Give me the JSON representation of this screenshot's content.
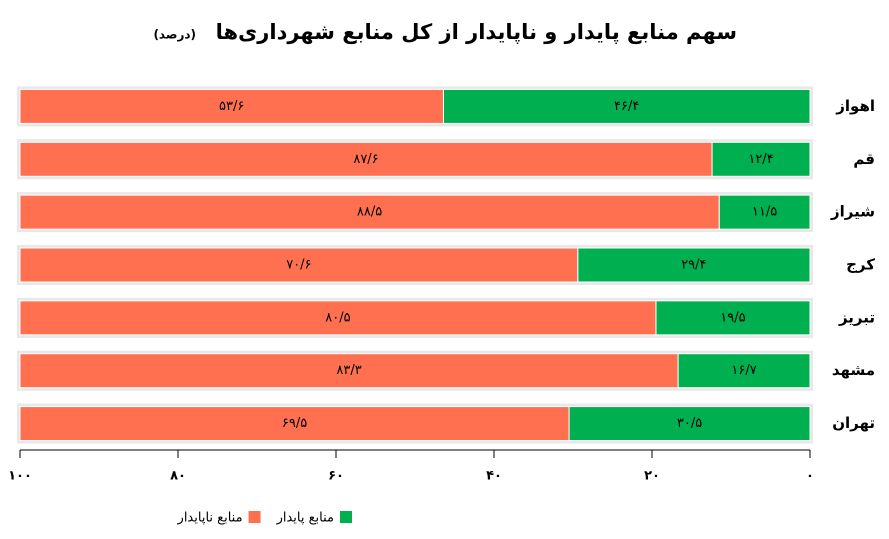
{
  "chart_data": {
    "type": "stacked_barh",
    "title": "سهم منابع پایدار و ناپایدار از کل منابع شهرداری‌ها",
    "subtitle": "(درصد)",
    "categories": [
      "اهواز",
      "قم",
      "شیراز",
      "کرج",
      "تبریز",
      "مشهد",
      "تهران"
    ],
    "series": [
      {
        "name": "منابع پایدار",
        "color": "#00b050",
        "values": [
          46.4,
          12.4,
          11.5,
          29.4,
          19.5,
          16.7,
          30.5
        ],
        "value_labels": [
          "۴۶/۴",
          "۱۲/۴",
          "۱۱/۵",
          "۲۹/۴",
          "۱۹/۵",
          "۱۶/۷",
          "۳۰/۵"
        ]
      },
      {
        "name": "منابع ناپایدار",
        "color": "#ff7050",
        "values": [
          53.6,
          87.6,
          88.5,
          70.6,
          80.5,
          83.3,
          69.5
        ],
        "value_labels": [
          "۵۳/۶",
          "۸۷/۶",
          "۸۸/۵",
          "۷۰/۶",
          "۸۰/۵",
          "۸۳/۳",
          "۶۹/۵"
        ]
      }
    ],
    "xlim": [
      0,
      100
    ],
    "xaxis_reversed": true,
    "xticks": [
      {
        "value": 0,
        "label": "۰"
      },
      {
        "value": 20,
        "label": "۲۰"
      },
      {
        "value": 40,
        "label": "۴۰"
      },
      {
        "value": 60,
        "label": "۶۰"
      },
      {
        "value": 80,
        "label": "۸۰"
      },
      {
        "value": 100,
        "label": "۱۰۰"
      }
    ]
  }
}
